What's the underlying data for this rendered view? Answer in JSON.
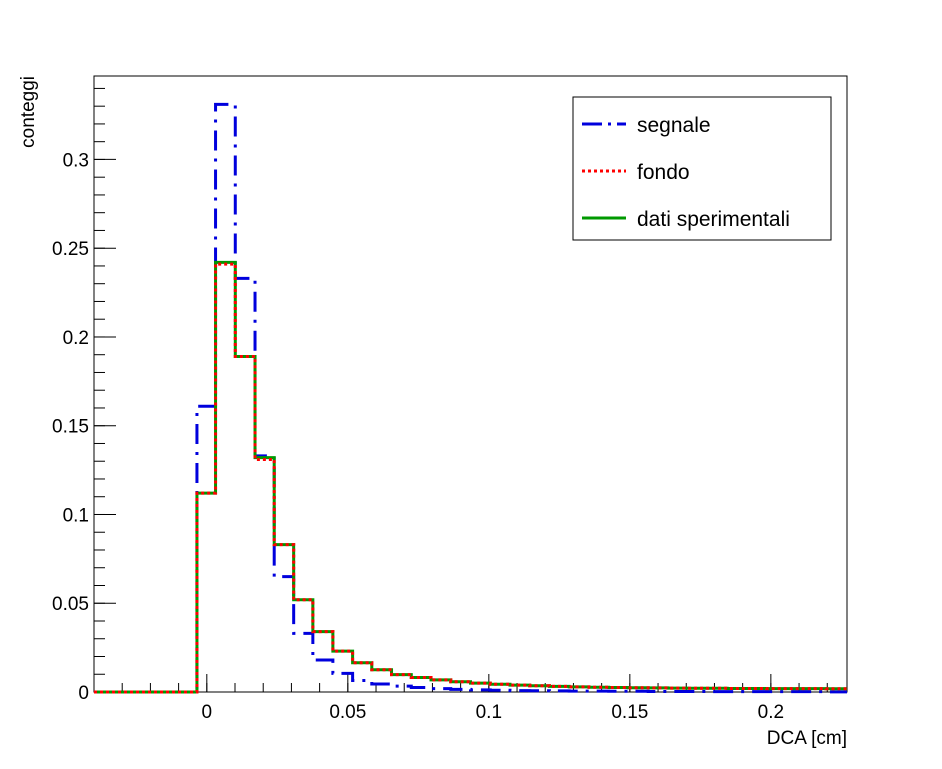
{
  "chart_data": {
    "type": "histogram",
    "xlabel": "DCA [cm]",
    "ylabel": "conteggi",
    "xlim": [
      -0.04,
      0.227
    ],
    "ylim": [
      0,
      0.347
    ],
    "x_ticks": [
      0,
      0.05,
      0.1,
      0.15,
      0.2
    ],
    "x_tick_labels": [
      "0",
      "0.05",
      "0.1",
      "0.15",
      "0.2"
    ],
    "y_ticks": [
      0,
      0.05,
      0.1,
      0.15,
      0.2,
      0.25,
      0.3
    ],
    "y_tick_labels": [
      "0",
      "0.05",
      "0.1",
      "0.15",
      "0.2",
      "0.25",
      "0.3"
    ],
    "grid": false,
    "legend_position": "top-right",
    "bin_edges": [
      -0.04,
      -0.0035,
      0.0031,
      0.0101,
      0.0171,
      0.0239,
      0.0308,
      0.0376,
      0.0447,
      0.0517,
      0.0585,
      0.0655,
      0.0725,
      0.0795,
      0.0865,
      0.0935,
      0.1005,
      0.1075,
      0.1145,
      0.1215,
      0.1285,
      0.1355,
      0.1425,
      0.1495,
      0.1565,
      0.1635,
      0.1705,
      0.1775,
      0.1845,
      0.1915,
      0.1985,
      0.2055,
      0.2125,
      0.2195,
      0.227
    ],
    "series": [
      {
        "name": "segnale",
        "color": "#0000dd",
        "values": [
          0,
          0.161,
          0.331,
          0.233,
          0.133,
          0.065,
          0.033,
          0.018,
          0.0105,
          0.0065,
          0.0045,
          0.0033,
          0.0025,
          0.0019,
          0.0015,
          0.0012,
          0.001,
          0.0008,
          0.0007,
          0.0006,
          0.0005,
          0.0005,
          0.0004,
          0.0004,
          0.0003,
          0.0003,
          0.0003,
          0.0002,
          0.0002,
          0.0002,
          0.0002,
          0.0002,
          0.0002,
          0.0001
        ]
      },
      {
        "name": "fondo",
        "color": "#ff0000",
        "values": [
          0,
          0.112,
          0.241,
          0.189,
          0.131,
          0.083,
          0.052,
          0.034,
          0.023,
          0.0165,
          0.0125,
          0.0098,
          0.0082,
          0.0068,
          0.0058,
          0.005,
          0.0044,
          0.0039,
          0.0035,
          0.0032,
          0.0029,
          0.0027,
          0.0025,
          0.0024,
          0.0023,
          0.0022,
          0.0021,
          0.0021,
          0.002,
          0.002,
          0.0019,
          0.0019,
          0.0019,
          0.0018
        ]
      },
      {
        "name": "dati sperimentali",
        "color": "#009900",
        "values": [
          0,
          0.112,
          0.242,
          0.189,
          0.132,
          0.083,
          0.052,
          0.034,
          0.023,
          0.0165,
          0.0125,
          0.0098,
          0.0082,
          0.0068,
          0.0058,
          0.005,
          0.0044,
          0.0039,
          0.0035,
          0.0032,
          0.0029,
          0.0027,
          0.0025,
          0.0024,
          0.0023,
          0.0022,
          0.0021,
          0.0021,
          0.002,
          0.002,
          0.0019,
          0.0019,
          0.0019,
          0.0018
        ]
      }
    ]
  }
}
